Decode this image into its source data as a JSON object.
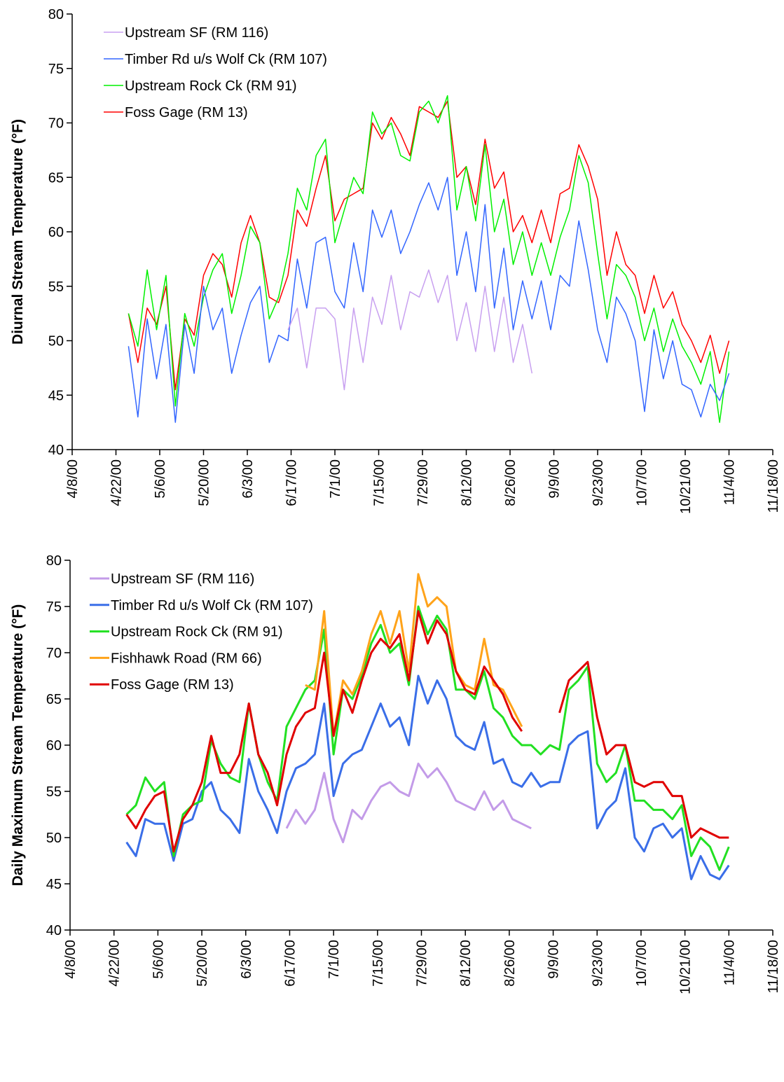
{
  "chart_data": [
    {
      "type": "line",
      "y_label": "Diurnal Stream Temperature (°F)",
      "x": [
        "4/26/00",
        "4/29/00",
        "5/2/00",
        "5/5/00",
        "5/8/00",
        "5/11/00",
        "5/14/00",
        "5/17/00",
        "5/20/00",
        "5/23/00",
        "5/26/00",
        "5/29/00",
        "6/1/00",
        "6/4/00",
        "6/7/00",
        "6/10/00",
        "6/13/00",
        "6/16/00",
        "6/19/00",
        "6/22/00",
        "6/25/00",
        "6/28/00",
        "7/1/00",
        "7/4/00",
        "7/7/00",
        "7/10/00",
        "7/13/00",
        "7/16/00",
        "7/19/00",
        "7/22/00",
        "7/25/00",
        "7/28/00",
        "7/31/00",
        "8/3/00",
        "8/6/00",
        "8/9/00",
        "8/12/00",
        "8/15/00",
        "8/18/00",
        "8/21/00",
        "8/24/00",
        "8/27/00",
        "8/30/00",
        "9/2/00",
        "9/5/00",
        "9/8/00",
        "9/11/00",
        "9/14/00",
        "9/17/00",
        "9/20/00",
        "9/23/00",
        "9/26/00",
        "9/29/00",
        "10/2/00",
        "10/5/00",
        "10/8/00",
        "10/11/00",
        "10/14/00",
        "10/17/00",
        "10/20/00",
        "10/23/00",
        "10/26/00",
        "10/29/00",
        "11/1/00",
        "11/4/00"
      ],
      "series": [
        {
          "name": "Upstream SF (RM 116)",
          "color": "#c8a0f0",
          "values": [
            null,
            null,
            null,
            null,
            null,
            null,
            null,
            null,
            null,
            null,
            null,
            null,
            null,
            null,
            null,
            null,
            null,
            51,
            53,
            47.5,
            53,
            53,
            52,
            45.5,
            53,
            48,
            54,
            51.5,
            56,
            51,
            54.5,
            54,
            56.5,
            53.5,
            56,
            50,
            53.5,
            49,
            55,
            49,
            54,
            48,
            51.5,
            47,
            null,
            null,
            null,
            null,
            null,
            null,
            null,
            null,
            null,
            null,
            null,
            null,
            null,
            null,
            null,
            null,
            null,
            null,
            null,
            null,
            null
          ]
        },
        {
          "name": "Timber Rd u/s Wolf Ck (RM 107)",
          "color": "#3366ff",
          "values": [
            49.5,
            43,
            52,
            46.5,
            51.5,
            42.5,
            51.5,
            47,
            55,
            51,
            53,
            47,
            50.5,
            53.5,
            55,
            48,
            50.5,
            50,
            57.5,
            53,
            59,
            59.5,
            54.5,
            53,
            59,
            54.5,
            62,
            59.5,
            62,
            58,
            60,
            62.5,
            64.5,
            62,
            65,
            56,
            60,
            54.5,
            62.5,
            53,
            58.5,
            51,
            55.5,
            52,
            55.5,
            51,
            56,
            55,
            61,
            56.5,
            51,
            48,
            54,
            52.5,
            50,
            43.5,
            51,
            46.5,
            50,
            46,
            45.5,
            43,
            46,
            44.5,
            47
          ]
        },
        {
          "name": "Upstream Rock Ck (RM 91)",
          "color": "#00f000",
          "values": [
            52.5,
            49.5,
            56.5,
            51,
            56,
            44,
            52.5,
            49.5,
            54,
            56.5,
            58,
            52.5,
            56,
            60.5,
            59,
            52,
            54,
            58,
            64,
            62,
            67,
            68.5,
            59,
            62,
            65,
            63.5,
            71,
            69,
            70,
            67,
            66.5,
            71,
            72,
            70,
            72.5,
            62,
            66,
            61,
            68,
            60,
            63,
            57,
            60,
            56,
            59,
            56,
            59.5,
            62,
            67,
            64.5,
            58,
            52,
            57,
            56,
            54,
            50,
            53,
            49,
            52,
            49.5,
            48,
            46,
            49,
            42.5,
            49
          ]
        },
        {
          "name": "Foss Gage (RM 13)",
          "color": "#ff0000",
          "values": [
            52.5,
            48,
            53,
            51.5,
            55,
            45.5,
            52,
            50.5,
            56,
            58,
            57,
            54,
            59,
            61.5,
            59,
            54,
            53.5,
            56,
            62,
            60.5,
            64,
            67,
            61,
            63,
            63.5,
            64,
            70,
            68.5,
            70.5,
            69,
            67,
            71.5,
            71,
            70.5,
            72,
            65,
            66,
            62.5,
            68.5,
            64,
            65.5,
            60,
            61.5,
            59,
            62,
            59,
            63.5,
            64,
            68,
            66,
            63,
            56,
            60,
            57,
            56,
            52.5,
            56,
            53,
            54.5,
            51.5,
            50,
            48,
            50.5,
            47,
            50
          ]
        }
      ],
      "xlim": [
        "4/8/00",
        "11/18/00"
      ],
      "xticks": [
        "4/8/00",
        "4/22/00",
        "5/6/00",
        "5/20/00",
        "6/3/00",
        "6/17/00",
        "7/1/00",
        "7/15/00",
        "7/29/00",
        "8/12/00",
        "8/26/00",
        "9/9/00",
        "9/23/00",
        "10/7/00",
        "10/21/00",
        "11/4/00",
        "11/18/00"
      ],
      "ylim": [
        40,
        80
      ],
      "yticks": [
        40,
        45,
        50,
        55,
        60,
        65,
        70,
        75,
        80
      ],
      "line_width": 1.5
    },
    {
      "type": "line",
      "y_label": "Daily Maximum Stream Temperature (°F)",
      "x": [
        "4/26/00",
        "4/29/00",
        "5/2/00",
        "5/5/00",
        "5/8/00",
        "5/11/00",
        "5/14/00",
        "5/17/00",
        "5/20/00",
        "5/23/00",
        "5/26/00",
        "5/29/00",
        "6/1/00",
        "6/4/00",
        "6/7/00",
        "6/10/00",
        "6/13/00",
        "6/16/00",
        "6/19/00",
        "6/22/00",
        "6/25/00",
        "6/28/00",
        "7/1/00",
        "7/4/00",
        "7/7/00",
        "7/10/00",
        "7/13/00",
        "7/16/00",
        "7/19/00",
        "7/22/00",
        "7/25/00",
        "7/28/00",
        "7/31/00",
        "8/3/00",
        "8/6/00",
        "8/9/00",
        "8/12/00",
        "8/15/00",
        "8/18/00",
        "8/21/00",
        "8/24/00",
        "8/27/00",
        "8/30/00",
        "9/2/00",
        "9/5/00",
        "9/8/00",
        "9/11/00",
        "9/14/00",
        "9/17/00",
        "9/20/00",
        "9/23/00",
        "9/26/00",
        "9/29/00",
        "10/2/00",
        "10/5/00",
        "10/8/00",
        "10/11/00",
        "10/14/00",
        "10/17/00",
        "10/20/00",
        "10/23/00",
        "10/26/00",
        "10/29/00",
        "11/1/00",
        "11/4/00"
      ],
      "series": [
        {
          "name": "Upstream SF (RM 116)",
          "color": "#c39be8",
          "values": [
            null,
            null,
            null,
            null,
            null,
            null,
            null,
            null,
            null,
            null,
            null,
            null,
            null,
            null,
            null,
            null,
            null,
            51,
            53,
            51.5,
            53,
            57,
            52,
            49.5,
            53,
            52,
            54,
            55.5,
            56,
            55,
            54.5,
            58,
            56.5,
            57.5,
            56,
            54,
            53.5,
            53,
            55,
            53,
            54,
            52,
            51.5,
            51,
            null,
            null,
            null,
            null,
            null,
            null,
            null,
            null,
            null,
            null,
            null,
            null,
            null,
            null,
            null,
            null,
            null,
            null,
            null,
            null,
            null
          ]
        },
        {
          "name": "Timber Rd u/s Wolf Ck (RM 107)",
          "color": "#3a6ee8",
          "values": [
            49.5,
            48,
            52,
            51.5,
            51.5,
            47.5,
            51.5,
            52,
            55,
            56,
            53,
            52,
            50.5,
            58.5,
            55,
            53,
            50.5,
            55,
            57.5,
            58,
            59,
            64.5,
            54.5,
            58,
            59,
            59.5,
            62,
            64.5,
            62,
            63,
            60,
            67.5,
            64.5,
            67,
            65,
            61,
            60,
            59.5,
            62.5,
            58,
            58.5,
            56,
            55.5,
            57,
            55.5,
            56,
            56,
            60,
            61,
            61.5,
            51,
            53,
            54,
            57.5,
            50,
            48.5,
            51,
            51.5,
            50,
            51,
            45.5,
            48,
            46,
            45.5,
            47
          ]
        },
        {
          "name": "Upstream Rock Ck (RM 91)",
          "color": "#22e022",
          "values": [
            52.5,
            53.5,
            56.5,
            55,
            56,
            48,
            52.5,
            53.5,
            54,
            60.5,
            58,
            56.5,
            56,
            64.5,
            59,
            56,
            54,
            62,
            64,
            66,
            67,
            72.5,
            59,
            66,
            65,
            67.5,
            71,
            73,
            70,
            71,
            66.5,
            75,
            72,
            74,
            72.5,
            66,
            66,
            65,
            68,
            64,
            63,
            61,
            60,
            60,
            59,
            60,
            59.5,
            66,
            67,
            68.5,
            58,
            56,
            57,
            60,
            54,
            54,
            53,
            53,
            52,
            53.5,
            48,
            50,
            49,
            46.5,
            49
          ]
        },
        {
          "name": "Fishhawk Road (RM 66)",
          "color": "#ffa31a",
          "values": [
            null,
            null,
            null,
            null,
            null,
            null,
            null,
            null,
            null,
            null,
            null,
            null,
            null,
            null,
            null,
            null,
            null,
            null,
            null,
            66.5,
            66,
            74.5,
            61,
            67,
            65.5,
            68,
            72,
            74.5,
            71,
            74.5,
            68,
            78.5,
            75,
            76,
            75,
            68,
            66.5,
            66,
            71.5,
            66.5,
            66,
            64,
            62,
            null,
            null,
            null,
            null,
            null,
            null,
            null,
            null,
            null,
            null,
            null,
            null,
            null,
            null,
            null,
            null,
            null,
            null,
            null,
            null,
            null,
            null
          ]
        },
        {
          "name": "Foss Gage (RM 13)",
          "color": "#e00000",
          "values": [
            52.5,
            51,
            53,
            54.5,
            55,
            48.5,
            52,
            53.5,
            56,
            61,
            57,
            57,
            59,
            64.5,
            59,
            57,
            53.5,
            59,
            62,
            63.5,
            64,
            70,
            61,
            66,
            63.5,
            67,
            70,
            71.5,
            70.5,
            72,
            67,
            74.5,
            71,
            73.5,
            72,
            68,
            66,
            65.5,
            68.5,
            67,
            65.5,
            63,
            61.5,
            null,
            null,
            null,
            63.5,
            67,
            68,
            69,
            63,
            59,
            60,
            60,
            56,
            55.5,
            56,
            56,
            54.5,
            54.5,
            50,
            51,
            50.5,
            50,
            50
          ]
        }
      ],
      "xlim": [
        "4/8/00",
        "11/18/00"
      ],
      "xticks": [
        "4/8/00",
        "4/22/00",
        "5/6/00",
        "5/20/00",
        "6/3/00",
        "6/17/00",
        "7/1/00",
        "7/15/00",
        "7/29/00",
        "8/12/00",
        "8/26/00",
        "9/9/00",
        "9/23/00",
        "10/7/00",
        "10/21/00",
        "11/4/00",
        "11/18/00"
      ],
      "ylim": [
        40,
        80
      ],
      "yticks": [
        40,
        45,
        50,
        55,
        60,
        65,
        70,
        75,
        80
      ],
      "line_width": 3
    }
  ]
}
